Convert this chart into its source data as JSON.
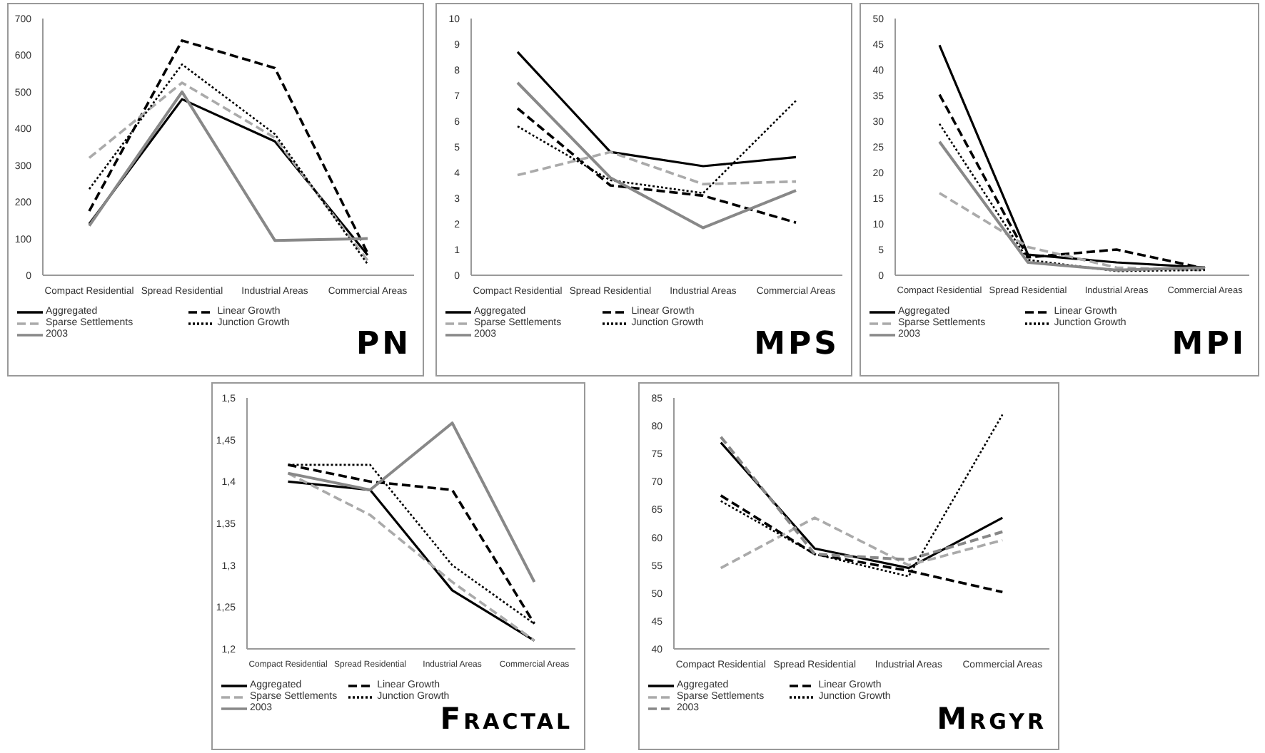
{
  "chart_data": [
    {
      "type": "line",
      "title": "PN",
      "categories": [
        "Compact Residential",
        "Spread Residential",
        "Industrial Areas",
        "Commercial Areas"
      ],
      "ylim": [
        0,
        700
      ],
      "yticks": [
        0,
        100,
        200,
        300,
        400,
        500,
        600,
        700
      ],
      "legend": "bottom",
      "marker": "none",
      "series": [
        {
          "name": "Aggregated",
          "color": "#000000",
          "line_style": "solid",
          "values": [
            140,
            480,
            365,
            55
          ]
        },
        {
          "name": "Linear Growth",
          "color": "#000000",
          "line_style": "dashed",
          "values": [
            175,
            640,
            565,
            60
          ]
        },
        {
          "name": "Sparse Settlements",
          "color": "#aaaaaa",
          "line_style": "dashed",
          "values": [
            320,
            525,
            375,
            40
          ]
        },
        {
          "name": "Junction Growth",
          "color": "#000000",
          "line_style": "dotted",
          "values": [
            235,
            575,
            385,
            30
          ]
        },
        {
          "name": "2003",
          "color": "#888888",
          "line_style": "solid",
          "values": [
            135,
            500,
            95,
            100
          ]
        }
      ]
    },
    {
      "type": "line",
      "title": "MPS",
      "categories": [
        "Compact Residential",
        "Spread Residential",
        "Industrial Areas",
        "Commercial Areas"
      ],
      "ylim": [
        0,
        10
      ],
      "yticks": [
        0,
        1,
        2,
        3,
        4,
        5,
        6,
        7,
        8,
        9,
        10
      ],
      "legend": "bottom",
      "marker": "none",
      "series": [
        {
          "name": "Aggregated",
          "color": "#000000",
          "line_style": "solid",
          "values": [
            8.7,
            4.8,
            4.25,
            4.6
          ]
        },
        {
          "name": "Linear Growth",
          "color": "#000000",
          "line_style": "dashed",
          "values": [
            6.5,
            3.5,
            3.1,
            2.05
          ]
        },
        {
          "name": "Sparse Settlements",
          "color": "#aaaaaa",
          "line_style": "dashed",
          "values": [
            3.9,
            4.8,
            3.55,
            3.65
          ]
        },
        {
          "name": "Junction Growth",
          "color": "#000000",
          "line_style": "dotted",
          "values": [
            5.8,
            3.7,
            3.2,
            6.8
          ]
        },
        {
          "name": "2003",
          "color": "#888888",
          "line_style": "solid",
          "values": [
            7.5,
            3.8,
            1.85,
            3.3
          ]
        }
      ]
    },
    {
      "type": "line",
      "title": "MPI",
      "categories": [
        "Compact Residential",
        "Spread Residential",
        "Industrial Areas",
        "Commercial Areas"
      ],
      "ylim": [
        0,
        50
      ],
      "yticks": [
        0,
        5,
        10,
        15,
        20,
        25,
        30,
        35,
        40,
        45,
        50
      ],
      "legend": "bottom",
      "marker": "none",
      "series": [
        {
          "name": "Aggregated",
          "color": "#000000",
          "line_style": "solid",
          "values": [
            44.8,
            4,
            2.5,
            1.5
          ]
        },
        {
          "name": "Linear Growth",
          "color": "#000000",
          "line_style": "dashed",
          "values": [
            35.2,
            3.5,
            5,
            1.3
          ]
        },
        {
          "name": "Sparse Settlements",
          "color": "#aaaaaa",
          "line_style": "dashed",
          "values": [
            16,
            5.5,
            1.5,
            1
          ]
        },
        {
          "name": "Junction Growth",
          "color": "#000000",
          "line_style": "dotted",
          "values": [
            29.5,
            3,
            0.8,
            1
          ]
        },
        {
          "name": "2003",
          "color": "#888888",
          "line_style": "solid",
          "values": [
            26,
            2.5,
            1,
            1.5
          ]
        }
      ]
    },
    {
      "type": "line",
      "title": "Fractal",
      "categories": [
        "Compact Residential",
        "Spread Residential",
        "Industrial Areas",
        "Commercial Areas"
      ],
      "ylim": [
        1.2,
        1.5
      ],
      "yticks": [
        {
          "value": 1.2,
          "label": "1,2"
        },
        {
          "value": 1.25,
          "label": "1,25"
        },
        {
          "value": 1.3,
          "label": "1,3"
        },
        {
          "value": 1.35,
          "label": "1,35"
        },
        {
          "value": 1.4,
          "label": "1,4"
        },
        {
          "value": 1.45,
          "label": "1,45"
        },
        {
          "value": 1.5,
          "label": "1,5"
        }
      ],
      "legend": "bottom",
      "marker": "none",
      "series": [
        {
          "name": "Aggregated",
          "color": "#000000",
          "line_style": "solid",
          "values": [
            1.4,
            1.39,
            1.27,
            1.21
          ]
        },
        {
          "name": "Linear Growth",
          "color": "#000000",
          "line_style": "dashed",
          "values": [
            1.42,
            1.4,
            1.39,
            1.23
          ]
        },
        {
          "name": "Sparse Settlements",
          "color": "#aaaaaa",
          "line_style": "dashed",
          "values": [
            1.41,
            1.36,
            1.28,
            1.21
          ]
        },
        {
          "name": "Junction Growth",
          "color": "#000000",
          "line_style": "dotted",
          "values": [
            1.42,
            1.42,
            1.3,
            1.23
          ]
        },
        {
          "name": "2003",
          "color": "#888888",
          "line_style": "solid",
          "values": [
            1.41,
            1.39,
            1.47,
            1.28
          ]
        }
      ]
    },
    {
      "type": "line",
      "title": "Mrgyr",
      "categories": [
        "Compact Residential",
        "Spread Residential",
        "Industrial Areas",
        "Commercial Areas"
      ],
      "ylim": [
        40,
        85
      ],
      "yticks": [
        40,
        45,
        50,
        55,
        60,
        65,
        70,
        75,
        80,
        85
      ],
      "legend": "bottom",
      "marker": "none",
      "series": [
        {
          "name": "Aggregated",
          "color": "#000000",
          "line_style": "solid",
          "values": [
            77,
            58,
            54.5,
            63.5
          ]
        },
        {
          "name": "Linear Growth",
          "color": "#000000",
          "line_style": "dashed",
          "values": [
            67.5,
            57,
            54,
            50.2
          ]
        },
        {
          "name": "Sparse Settlements",
          "color": "#aaaaaa",
          "line_style": "dashed",
          "values": [
            54.5,
            63.5,
            55,
            59.5
          ]
        },
        {
          "name": "Junction Growth",
          "color": "#000000",
          "line_style": "dotted",
          "values": [
            66.5,
            57,
            53,
            82
          ]
        },
        {
          "name": "2003",
          "color": "#888888",
          "line_style": "dashed",
          "values": [
            78,
            57,
            56,
            61
          ]
        }
      ]
    }
  ]
}
